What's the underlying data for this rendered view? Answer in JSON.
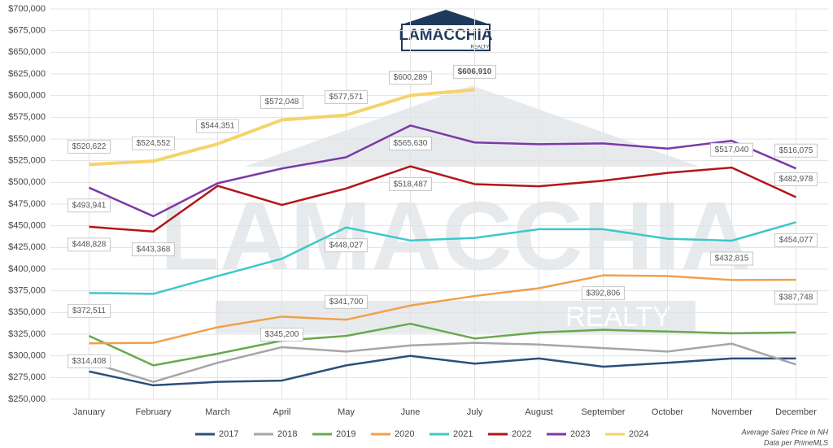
{
  "chart_data": {
    "type": "line",
    "logo": {
      "name": "LAMACCHIA",
      "tagline": "REALTY"
    },
    "categories": [
      "January",
      "February",
      "March",
      "April",
      "May",
      "June",
      "July",
      "August",
      "September",
      "October",
      "November",
      "December"
    ],
    "ylim": [
      250000,
      700000
    ],
    "yticks": [
      {
        "value": 250000,
        "label": "$250,000"
      },
      {
        "value": 275000,
        "label": "$275,000"
      },
      {
        "value": 300000,
        "label": "$300,000"
      },
      {
        "value": 325000,
        "label": "$325,000"
      },
      {
        "value": 350000,
        "label": "$350,000"
      },
      {
        "value": 375000,
        "label": "$375,000"
      },
      {
        "value": 400000,
        "label": "$400,000"
      },
      {
        "value": 425000,
        "label": "$425,000"
      },
      {
        "value": 450000,
        "label": "$450,000"
      },
      {
        "value": 475000,
        "label": "$475,000"
      },
      {
        "value": 500000,
        "label": "$500,000"
      },
      {
        "value": 525000,
        "label": "$525,000"
      },
      {
        "value": 550000,
        "label": "$550,000"
      },
      {
        "value": 575000,
        "label": "$575,000"
      },
      {
        "value": 600000,
        "label": "$600,000"
      },
      {
        "value": 625000,
        "label": "$625,000"
      },
      {
        "value": 650000,
        "label": "$650,000"
      },
      {
        "value": 675000,
        "label": "$675,000"
      },
      {
        "value": 700000,
        "label": "$700,000"
      }
    ],
    "grid": true,
    "legend": "bottom",
    "annotations": [
      "Average Sales Price in NH",
      "Data per PrimeMLS"
    ],
    "series": [
      {
        "name": "2017",
        "color": "#2c4f7c",
        "values": [
          282000,
          266000,
          270000,
          271500,
          289000,
          300000,
          291000,
          297000,
          287500,
          292000,
          297000,
          297000
        ]
      },
      {
        "name": "2018",
        "color": "#a6a6a6",
        "values": [
          293000,
          270000,
          292000,
          310000,
          305000,
          312000,
          315000,
          313000,
          309000,
          305000,
          314000,
          290000
        ]
      },
      {
        "name": "2019",
        "color": "#6aa84f",
        "values": [
          323000,
          289000,
          302500,
          317500,
          323000,
          337000,
          320000,
          327000,
          330000,
          328000,
          326000,
          327000
        ]
      },
      {
        "name": "2020",
        "color": "#f0a04b",
        "values": [
          314408,
          315000,
          333000,
          345200,
          341700,
          358000,
          369000,
          378000,
          392806,
          392000,
          387500,
          387748
        ],
        "value_labels": [
          "$314,408",
          null,
          null,
          "$345,200",
          "$341,700",
          null,
          null,
          null,
          "$392,806",
          null,
          null,
          "$387,748"
        ]
      },
      {
        "name": "2021",
        "color": "#3cc8c8",
        "values": [
          372511,
          371500,
          392000,
          412000,
          448027,
          433000,
          436000,
          446000,
          446000,
          435000,
          432815,
          454077
        ],
        "value_labels": [
          "$372,511",
          null,
          null,
          null,
          "$448,027",
          null,
          null,
          null,
          null,
          null,
          "$432,815",
          "$454,077"
        ]
      },
      {
        "name": "2022",
        "color": "#b3151a",
        "values": [
          448828,
          443368,
          496000,
          474000,
          493000,
          518487,
          498000,
          495500,
          502000,
          511000,
          517040,
          482978
        ],
        "value_labels": [
          "$448,828",
          "$443,368",
          null,
          null,
          null,
          "$518,487",
          null,
          null,
          null,
          null,
          "$517,040",
          "$482,978"
        ]
      },
      {
        "name": "2023",
        "color": "#7b3aa6",
        "values": [
          493941,
          461000,
          499000,
          516000,
          529000,
          565630,
          546000,
          544000,
          545000,
          539000,
          548000,
          516075
        ],
        "value_labels": [
          "$493,941",
          null,
          null,
          null,
          null,
          "$565,630",
          null,
          null,
          null,
          null,
          null,
          "$516,075"
        ]
      },
      {
        "name": "2024",
        "color": "#f5d36b",
        "values": [
          520622,
          524552,
          544351,
          572048,
          577571,
          600289,
          606910,
          null,
          null,
          null,
          null,
          null
        ],
        "value_labels": [
          "$520,622",
          "$524,552",
          "$544,351",
          "$572,048",
          "$577,571",
          "$600,289",
          "$606,910",
          null,
          null,
          null,
          null,
          null
        ]
      }
    ]
  }
}
